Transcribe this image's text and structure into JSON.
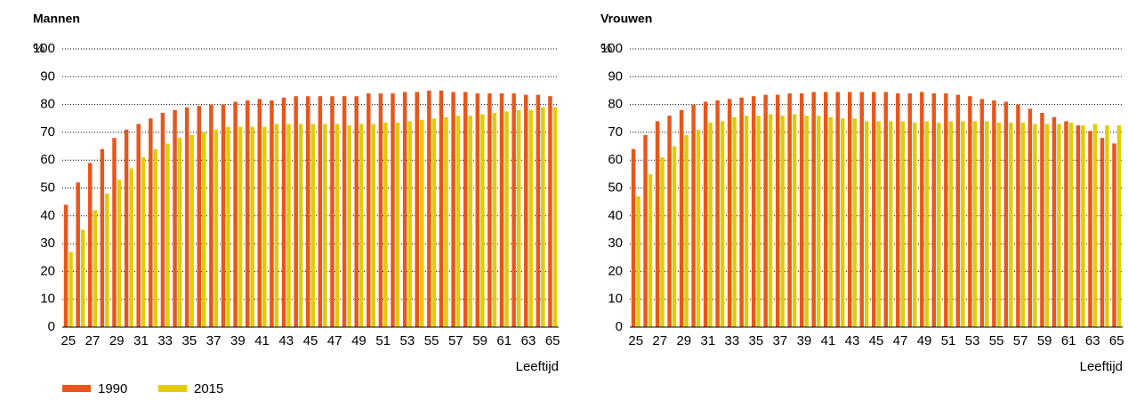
{
  "chart_data": [
    {
      "type": "bar",
      "title": "Mannen",
      "ylabel": "%",
      "xlabel": "Leeftijd",
      "categories": [
        "25",
        null,
        "27",
        null,
        "29",
        null,
        "31",
        null,
        "33",
        null,
        "35",
        null,
        "37",
        null,
        "39",
        null,
        "41",
        null,
        "43",
        null,
        "45",
        null,
        "47",
        null,
        "49",
        null,
        "51",
        null,
        "53",
        null,
        "55",
        null,
        "57",
        null,
        "59",
        null,
        "61",
        null,
        "63",
        null,
        "65"
      ],
      "series": [
        {
          "name": "1990",
          "color": "#e8561c",
          "values": [
            44,
            52,
            59,
            64,
            68,
            71,
            73,
            75,
            77,
            78,
            79,
            79.5,
            80,
            80,
            81,
            81.5,
            82,
            81.5,
            82.5,
            83,
            83,
            83,
            83,
            83,
            83,
            84,
            84,
            84,
            84.5,
            84.5,
            85,
            85,
            84.5,
            84.5,
            84,
            84,
            84,
            84,
            83.5,
            83.5,
            83
          ]
        },
        {
          "name": "2015",
          "color": "#e3cc00",
          "values": [
            27,
            35,
            42,
            48,
            53,
            57,
            61,
            64,
            66,
            68,
            69,
            70,
            71,
            72,
            72,
            72,
            72,
            73,
            73,
            73,
            73,
            73,
            73,
            72.5,
            73,
            73,
            73.5,
            73.5,
            74,
            74.5,
            75,
            75.5,
            76,
            76,
            76.5,
            77,
            77.5,
            78,
            78,
            79,
            79
          ]
        }
      ],
      "ylim": [
        0,
        100
      ],
      "yticks": [
        0,
        10,
        20,
        30,
        40,
        50,
        60,
        70,
        80,
        90,
        100
      ],
      "grid": true
    },
    {
      "type": "bar",
      "title": "Vrouwen",
      "ylabel": "%",
      "xlabel": "Leeftijd",
      "categories": [
        "25",
        null,
        "27",
        null,
        "29",
        null,
        "31",
        null,
        "33",
        null,
        "35",
        null,
        "37",
        null,
        "39",
        null,
        "41",
        null,
        "43",
        null,
        "45",
        null,
        "47",
        null,
        "49",
        null,
        "51",
        null,
        "53",
        null,
        "55",
        null,
        "57",
        null,
        "59",
        null,
        "61",
        null,
        "63",
        null,
        "65"
      ],
      "series": [
        {
          "color": "#e8561c",
          "values": [
            64,
            69,
            74,
            76,
            78,
            80,
            81,
            81.5,
            82,
            82.5,
            83,
            83.5,
            83.5,
            84,
            84,
            84.5,
            84.5,
            84.5,
            84.5,
            84.5,
            84.5,
            84.5,
            84,
            84,
            84.5,
            84,
            84,
            83.5,
            83,
            82,
            81.5,
            81,
            80,
            78.5,
            77,
            75.5,
            74,
            72.5,
            70.5,
            68,
            66
          ]
        },
        {
          "color": "#e3cc00",
          "values": [
            47,
            55,
            61,
            65,
            69,
            71,
            73.5,
            74,
            75.5,
            76,
            76,
            76.5,
            76,
            76.5,
            76,
            76,
            75.5,
            75,
            75,
            74,
            74,
            74,
            74,
            73.5,
            74,
            73.5,
            74,
            74,
            74,
            74,
            73.5,
            73.5,
            73.5,
            73,
            73,
            73,
            73.5,
            72.5,
            73,
            72.5,
            72.5
          ]
        }
      ],
      "ylim": [
        0,
        100
      ],
      "yticks": [
        0,
        10,
        20,
        30,
        40,
        50,
        60,
        70,
        80,
        90,
        100
      ],
      "grid": true
    }
  ]
}
